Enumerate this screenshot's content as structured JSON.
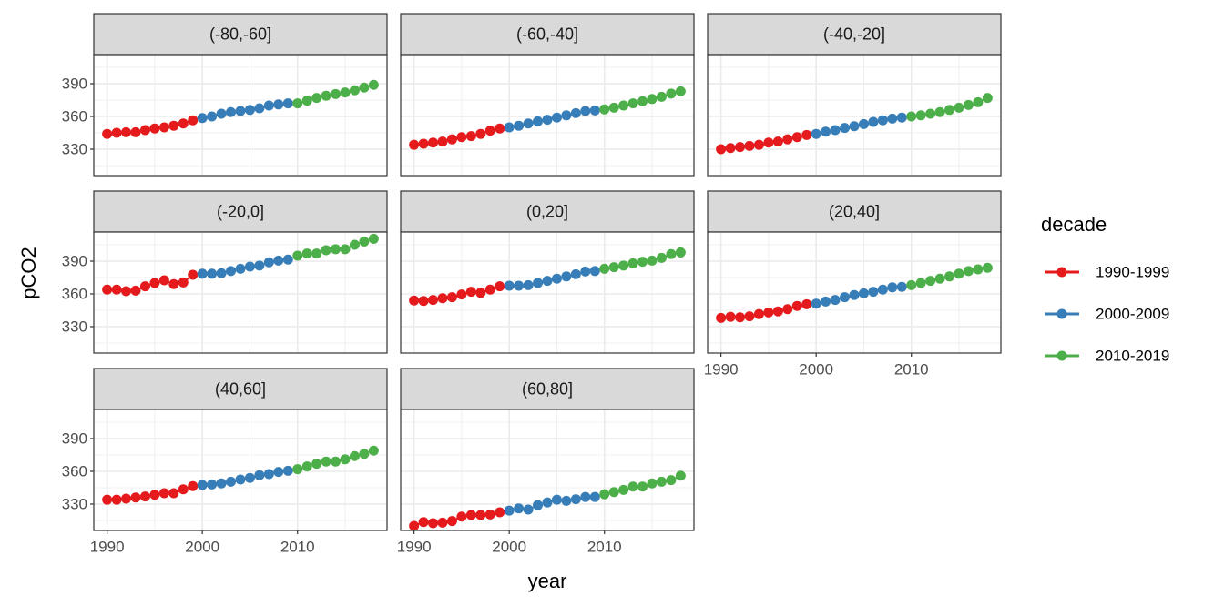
{
  "chart_data": {
    "type": "line",
    "xlabel": "year",
    "ylabel": "pCO2",
    "legend_title": "decade",
    "xlim": [
      1988.6,
      2019.4
    ],
    "ylim": [
      305.8,
      416.7
    ],
    "xticks": [
      1990,
      2000,
      2010
    ],
    "yticks": [
      330,
      360,
      390
    ],
    "minor_xticks": [
      1995,
      2005,
      2015
    ],
    "minor_yticks": [
      315,
      345,
      375,
      405
    ],
    "grid": true,
    "series": [
      {
        "name": "1990-1999",
        "color": "#e41a1c",
        "x": [
          1990,
          1991,
          1992,
          1993,
          1994,
          1995,
          1996,
          1997,
          1998,
          1999
        ]
      },
      {
        "name": "2000-2009",
        "color": "#377eb8",
        "x": [
          2000,
          2001,
          2002,
          2003,
          2004,
          2005,
          2006,
          2007,
          2008,
          2009
        ]
      },
      {
        "name": "2010-2019",
        "color": "#4daf4a",
        "x": [
          2010,
          2011,
          2012,
          2013,
          2014,
          2015,
          2016,
          2017,
          2018
        ]
      }
    ],
    "panels": [
      {
        "title": "(-80,-60]",
        "values": [
          [
            344,
            345,
            345.5,
            345.5,
            347.5,
            349,
            350,
            351.5,
            353.5,
            356.5
          ],
          [
            358.5,
            360,
            362.5,
            364,
            365,
            366,
            367.5,
            370,
            371,
            372
          ],
          [
            372,
            374.5,
            377,
            379,
            380.5,
            382,
            384,
            386.5,
            389
          ]
        ]
      },
      {
        "title": "(-60,-40]",
        "values": [
          [
            334,
            335,
            336,
            337,
            339,
            341,
            342,
            344,
            347,
            349
          ],
          [
            350,
            351.5,
            353.5,
            355.5,
            357,
            359,
            361,
            363,
            365,
            365.5
          ],
          [
            366.5,
            368,
            370,
            372,
            374,
            376,
            378,
            381,
            383
          ]
        ]
      },
      {
        "title": "(-40,-20]",
        "values": [
          [
            330,
            331,
            332,
            333,
            334,
            336,
            337,
            339,
            341,
            343
          ],
          [
            344,
            346,
            347.5,
            349.5,
            351,
            353,
            355,
            356.5,
            358,
            359
          ],
          [
            360,
            361,
            362.5,
            364,
            366,
            368,
            370.5,
            373,
            377
          ]
        ]
      },
      {
        "title": "(-20,0]",
        "values": [
          [
            364,
            364,
            362.5,
            363,
            367,
            370,
            372.5,
            369,
            370.5,
            377.5
          ],
          [
            378.5,
            378.5,
            379,
            381,
            383,
            385,
            386,
            389,
            390.5,
            391.5
          ],
          [
            395,
            397,
            397,
            400,
            401,
            401,
            405,
            408,
            410.5
          ]
        ]
      },
      {
        "title": "(0,20]",
        "values": [
          [
            354,
            353.5,
            354.5,
            356,
            357,
            359.5,
            362,
            361,
            364,
            367
          ],
          [
            367.5,
            367.5,
            368,
            370,
            372,
            374,
            376,
            378,
            380.5,
            381
          ],
          [
            383,
            384.5,
            386,
            388,
            389.5,
            390.5,
            393,
            396.5,
            398
          ]
        ]
      },
      {
        "title": "(20,40]",
        "values": [
          [
            338,
            339,
            338.5,
            339.5,
            341.5,
            343,
            344,
            346,
            349,
            350.5
          ],
          [
            351,
            353,
            354.5,
            357,
            359,
            360.5,
            362,
            364,
            366,
            366.5
          ],
          [
            368,
            370,
            372,
            374,
            376,
            378.5,
            381,
            382.5,
            384
          ]
        ]
      },
      {
        "title": "(40,60]",
        "values": [
          [
            334,
            334,
            335,
            336,
            337,
            338.5,
            340,
            340,
            343.5,
            346.5
          ],
          [
            347.5,
            348,
            349,
            350.5,
            352.5,
            354,
            356.5,
            357.5,
            359.5,
            360.5
          ],
          [
            362,
            364.5,
            367,
            369,
            369,
            371,
            374,
            376,
            379
          ]
        ]
      },
      {
        "title": "(60,80]",
        "values": [
          [
            310,
            313.5,
            312.5,
            313,
            314.5,
            318.5,
            320,
            320,
            320.5,
            322.5
          ],
          [
            324,
            326,
            325,
            329,
            331.5,
            334,
            333,
            334.5,
            336.5,
            336.5
          ],
          [
            339,
            341,
            343,
            346,
            346,
            349,
            350.5,
            352,
            356
          ]
        ]
      }
    ]
  }
}
